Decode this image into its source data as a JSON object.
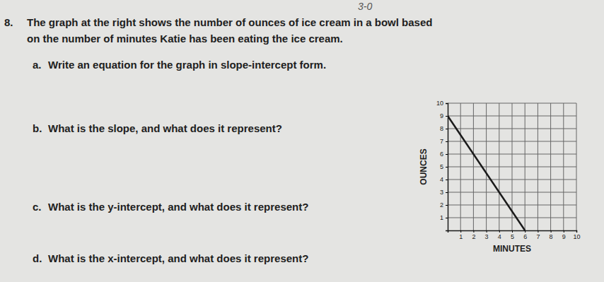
{
  "annotation": "3-0",
  "problem": {
    "number": "8.",
    "text": [
      "The graph at the right shows the number of ounces of ice cream in a bowl based",
      "on the number of minutes Katie has been eating the ice cream."
    ]
  },
  "questions": [
    {
      "label": "a.",
      "text": "Write an equation for the graph in slope-intercept form."
    },
    {
      "label": "b.",
      "text": "What is the slope, and what does it represent?"
    },
    {
      "label": "c.",
      "text": "What is the y-intercept, and what does it represent?"
    },
    {
      "label": "d.",
      "text": "What is the x-intercept, and what does it represent?"
    }
  ],
  "chart_data": {
    "type": "line",
    "x_label": "MINUTES",
    "y_label": "OUNCES",
    "x": [
      0,
      6
    ],
    "values": [
      9,
      0
    ],
    "color": "#1a1a1a",
    "xlim": [
      0,
      10
    ],
    "ylim": [
      0,
      10
    ],
    "xticks": [
      1,
      2,
      3,
      4,
      5,
      6,
      7,
      8,
      9,
      10
    ],
    "yticks": [
      1,
      2,
      3,
      4,
      5,
      6,
      7,
      8,
      9,
      10
    ],
    "grid": true
  }
}
